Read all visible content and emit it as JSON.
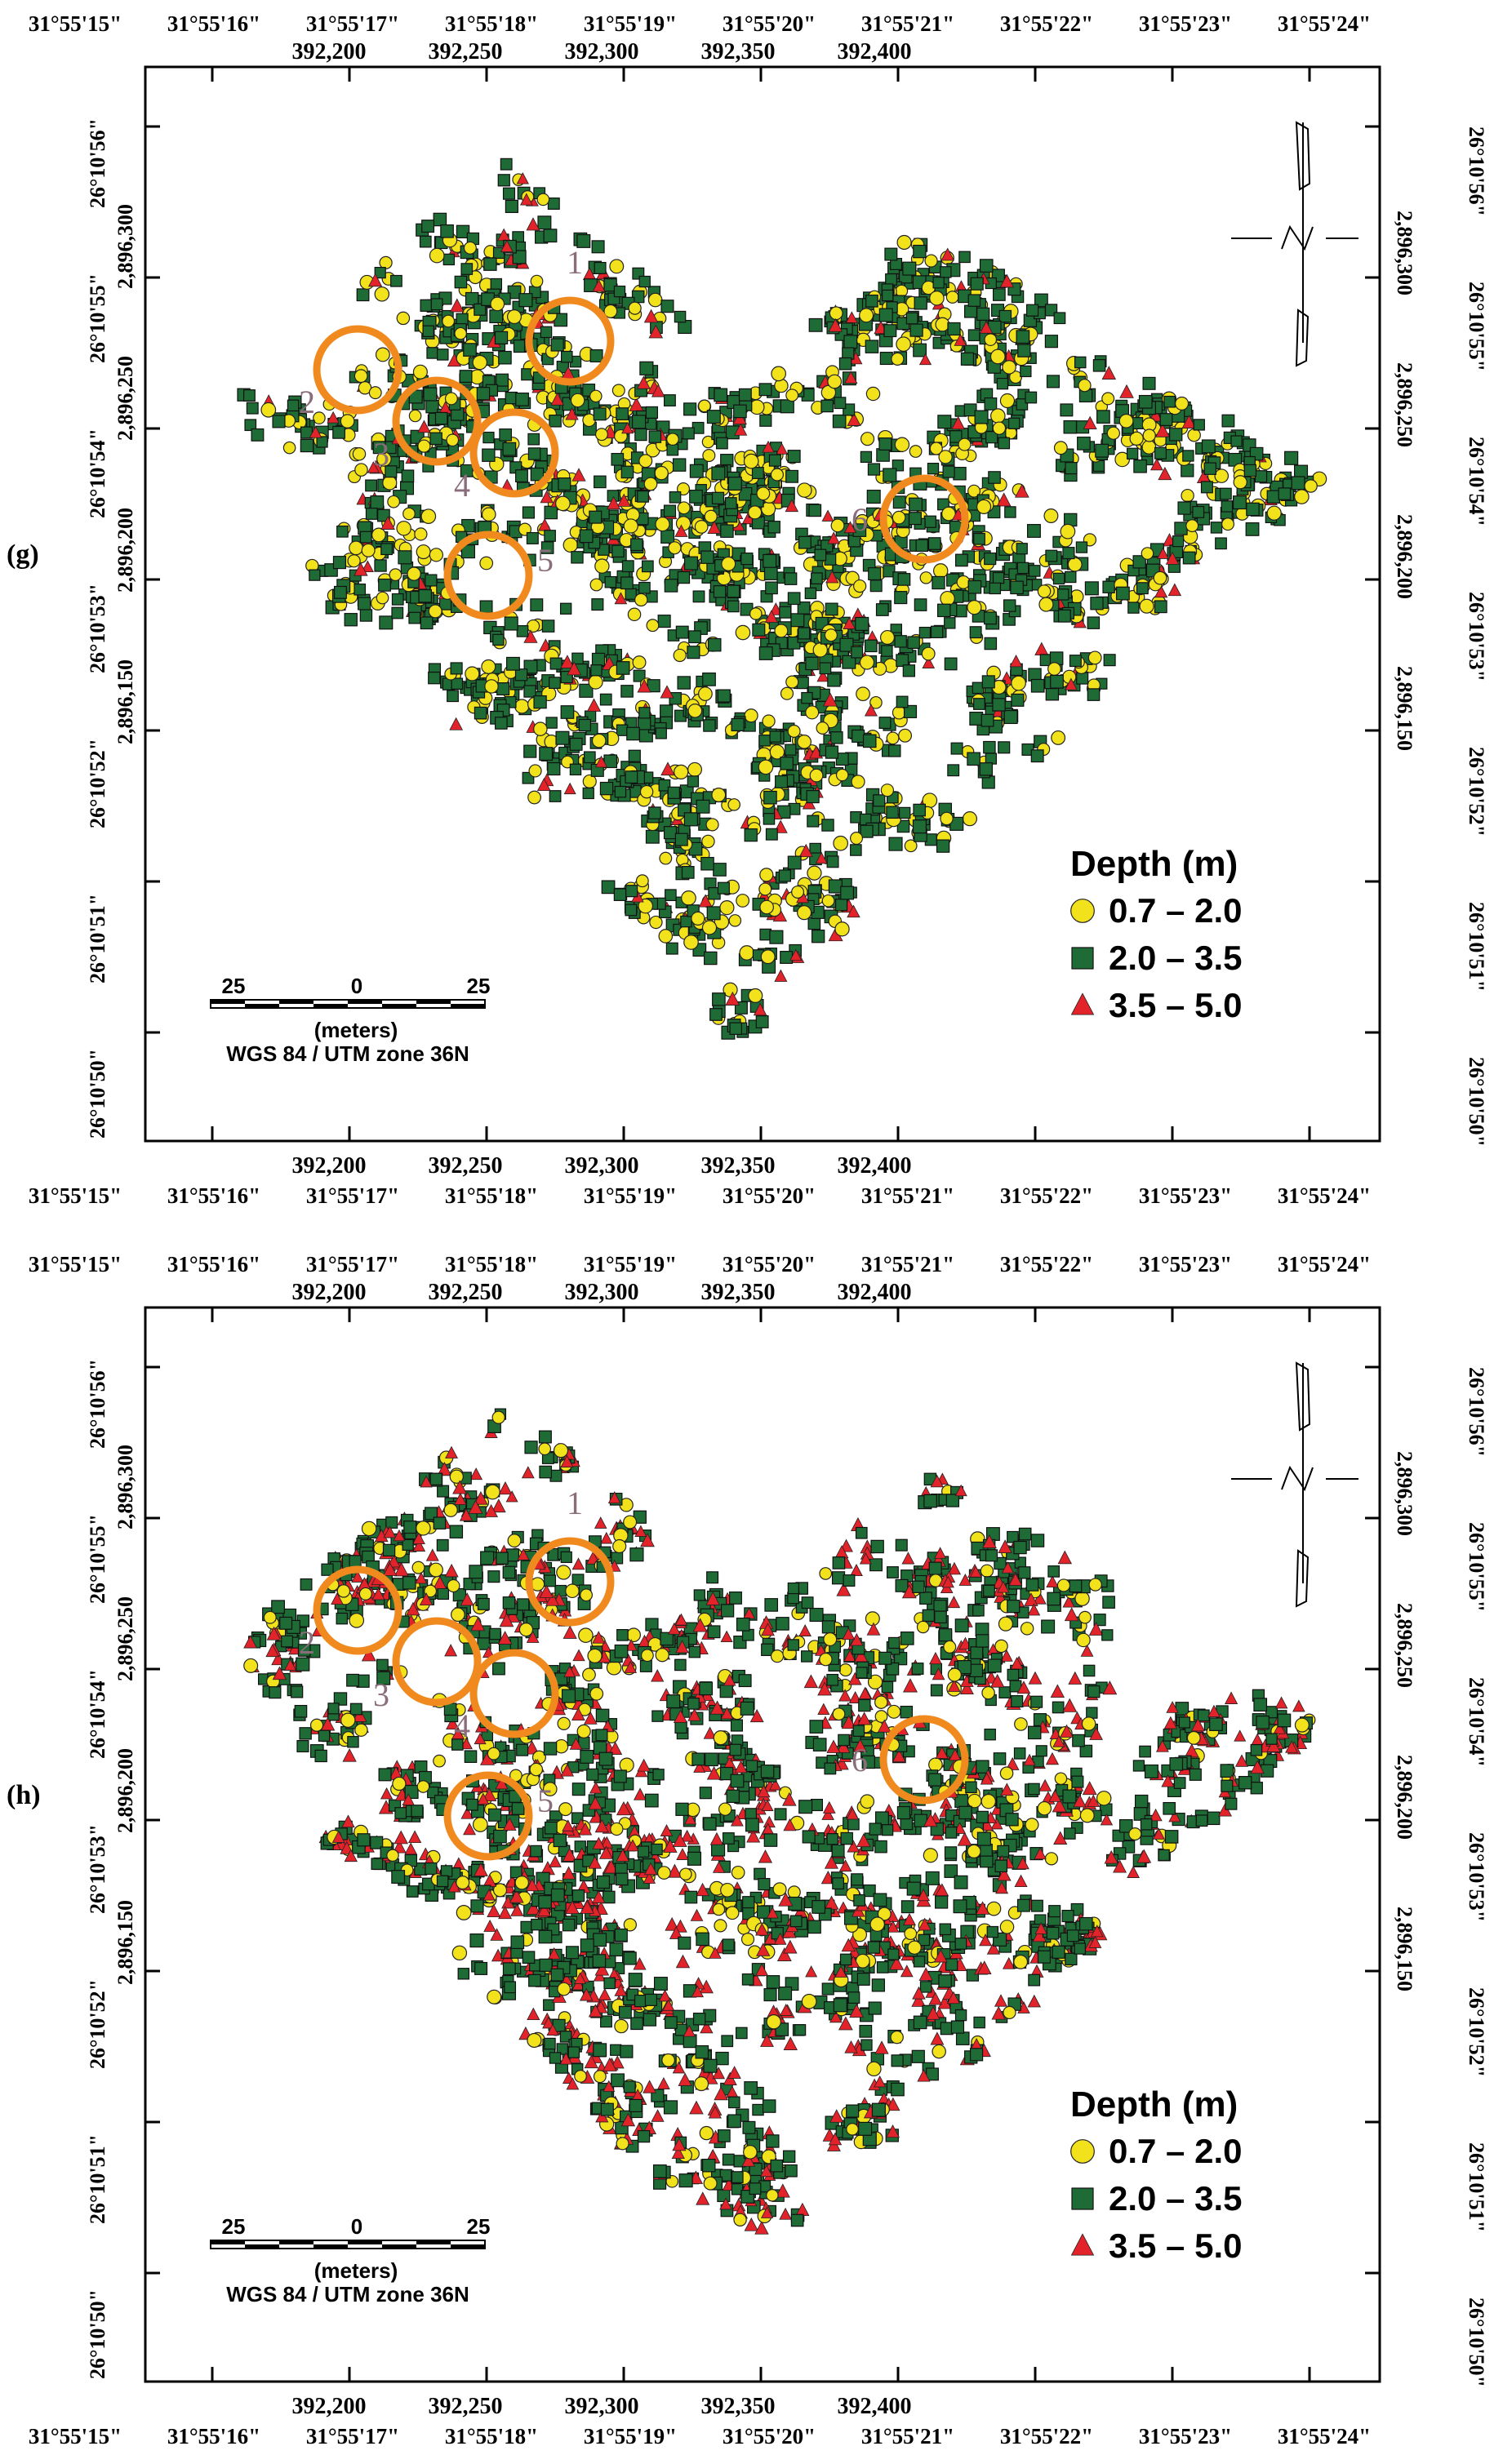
{
  "figure": {
    "panels": [
      {
        "id": "g",
        "label": "(g)",
        "legend": {
          "title": "Depth  (m)",
          "classes": [
            {
              "label": "0.7 – 2.0",
              "symbol": "circle",
              "color": "#f2e21b"
            },
            {
              "label": "2.0 – 3.5",
              "symbol": "square",
              "color": "#1e6b35"
            },
            {
              "label": "3.5 – 5.0",
              "symbol": "triangle",
              "color": "#e2232a"
            }
          ]
        },
        "anomaly_labels": [
          "1",
          "2",
          "3",
          "4",
          "5",
          "6"
        ],
        "top_geo_ticks": [
          "31°55'15\"",
          "31°55'16\"",
          "31°55'17\"",
          "31°55'18\"",
          "31°55'19\"",
          "31°55'20\"",
          "31°55'21\"",
          "31°55'22\"",
          "31°55'23\"",
          "31°55'24\""
        ],
        "top_utm_ticks": [
          "392,200",
          "392,250",
          "392,300",
          "392,350",
          "392,400"
        ],
        "bottom_utm_ticks": [
          "392,200",
          "392,250",
          "392,300",
          "392,350",
          "392,400"
        ],
        "bottom_geo_ticks": [
          "31°55'15\"",
          "31°55'16\"",
          "31°55'17\"",
          "31°55'18\"",
          "31°55'19\"",
          "31°55'20\"",
          "31°55'21\"",
          "31°55'22\"",
          "31°55'23\"",
          "31°55'24\""
        ],
        "left_geo_ticks": [
          "26°10'56\"",
          "26°10'55\"",
          "26°10'54\"",
          "26°10'53\"",
          "26°10'52\"",
          "26°10'51\"",
          "26°10'50\""
        ],
        "left_utm_ticks": [
          "2,896,300",
          "2,896,250",
          "2,896,200",
          "2,896,150"
        ],
        "right_utm_ticks": [
          "2,896,300",
          "2,896,250",
          "2,896,200",
          "2,896,150"
        ],
        "right_geo_ticks": [
          "26°10'56\"",
          "26°10'55\"",
          "26°10'54\"",
          "26°10'53\"",
          "26°10'52\"",
          "26°10'51\"",
          "26°10'50\""
        ],
        "scale_bar": {
          "left": "25",
          "center": "0",
          "right": "25",
          "units": "(meters)",
          "projection": "WGS 84 / UTM zone 36N"
        },
        "symbol_mix": {
          "circle": 0.3,
          "square": 0.62,
          "triangle": 0.08
        }
      },
      {
        "id": "h",
        "label": "(h)",
        "legend": {
          "title": "Depth  (m)",
          "classes": [
            {
              "label": "0.7 – 2.0",
              "symbol": "circle",
              "color": "#f2e21b"
            },
            {
              "label": "2.0 – 3.5",
              "symbol": "square",
              "color": "#1e6b35"
            },
            {
              "label": "3.5 – 5.0",
              "symbol": "triangle",
              "color": "#e2232a"
            }
          ]
        },
        "anomaly_labels": [
          "1",
          "2",
          "3",
          "4",
          "5",
          "6"
        ],
        "top_geo_ticks": [
          "31°55'15\"",
          "31°55'16\"",
          "31°55'17\"",
          "31°55'18\"",
          "31°55'19\"",
          "31°55'20\"",
          "31°55'21\"",
          "31°55'22\"",
          "31°55'23\"",
          "31°55'24\""
        ],
        "top_utm_ticks": [
          "392,200",
          "392,250",
          "392,300",
          "392,350",
          "392,400"
        ],
        "bottom_utm_ticks": [
          "392,200",
          "392,250",
          "392,300",
          "392,350",
          "392,400"
        ],
        "bottom_geo_ticks": [
          "31°55'15\"",
          "31°55'16\"",
          "31°55'17\"",
          "31°55'18\"",
          "31°55'19\"",
          "31°55'20\"",
          "31°55'21\"",
          "31°55'22\"",
          "31°55'23\"",
          "31°55'24\""
        ],
        "left_geo_ticks": [
          "26°10'56\"",
          "26°10'55\"",
          "26°10'54\"",
          "26°10'53\"",
          "26°10'52\"",
          "26°10'51\"",
          "26°10'50\""
        ],
        "left_utm_ticks": [
          "2,896,300",
          "2,896,250",
          "2,896,200",
          "2,896,150"
        ],
        "right_utm_ticks": [
          "2,896,300",
          "2,896,250",
          "2,896,200",
          "2,896,150"
        ],
        "right_geo_ticks": [
          "26°10'56\"",
          "26°10'55\"",
          "26°10'54\"",
          "26°10'53\"",
          "26°10'52\"",
          "26°10'51\"",
          "26°10'50\""
        ],
        "scale_bar": {
          "left": "25",
          "center": "0",
          "right": "25",
          "units": "(meters)",
          "projection": "WGS 84 / UTM zone 36N"
        },
        "symbol_mix": {
          "circle": 0.16,
          "square": 0.5,
          "triangle": 0.34
        }
      }
    ]
  }
}
